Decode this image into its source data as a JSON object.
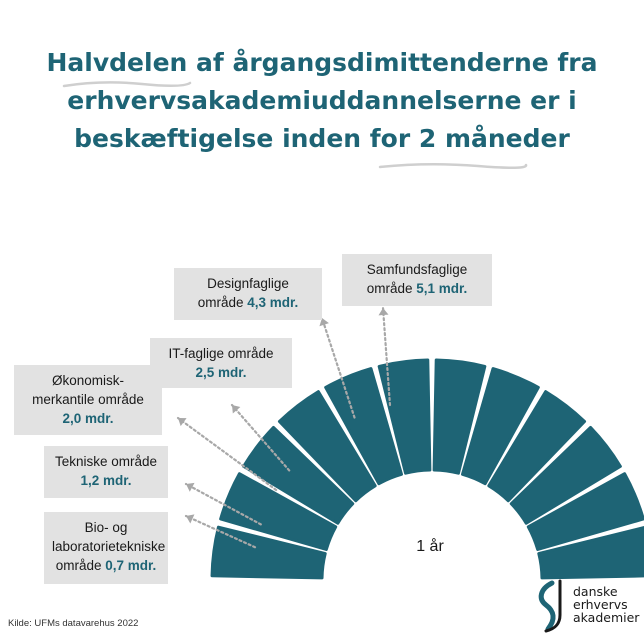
{
  "title_lines": [
    "Halvdelen af årgangsdimittenderne fra",
    "erhvervsakademiuddannelserne er i",
    "beskæftigelse inden for 2 måneder"
  ],
  "chart_data": {
    "type": "radial-segments",
    "unit": "mdr.",
    "center_label": "1 år",
    "total_segments": 12,
    "categories": [
      {
        "label_lines": [
          "Bio- og",
          "laboratorietekniske",
          "område"
        ],
        "value": 0.7,
        "value_text": "0,7 mdr."
      },
      {
        "label_lines": [
          "Tekniske område"
        ],
        "value": 1.2,
        "value_text": "1,2 mdr."
      },
      {
        "label_lines": [
          "Økonomisk-",
          "merkantile område"
        ],
        "value": 2.0,
        "value_text": "2,0 mdr."
      },
      {
        "label_lines": [
          "IT-faglige område"
        ],
        "value": 2.5,
        "value_text": "2,5 mdr."
      },
      {
        "label_lines": [
          "Designfaglige",
          "område"
        ],
        "value": 4.3,
        "value_text": "4,3 mdr."
      },
      {
        "label_lines": [
          "Samfundsfaglige",
          "område"
        ],
        "value": 5.1,
        "value_text": "5,1 mdr."
      }
    ],
    "colors": {
      "segment": "#1e6475",
      "box": "#e2e2e2",
      "value_text": "#1e6475",
      "arrow": "#a8a8a8"
    }
  },
  "source": "Kilde: UFMs datavarehus 2022",
  "logo": {
    "lines": [
      "danske",
      "erhvervs",
      "akademier"
    ]
  }
}
